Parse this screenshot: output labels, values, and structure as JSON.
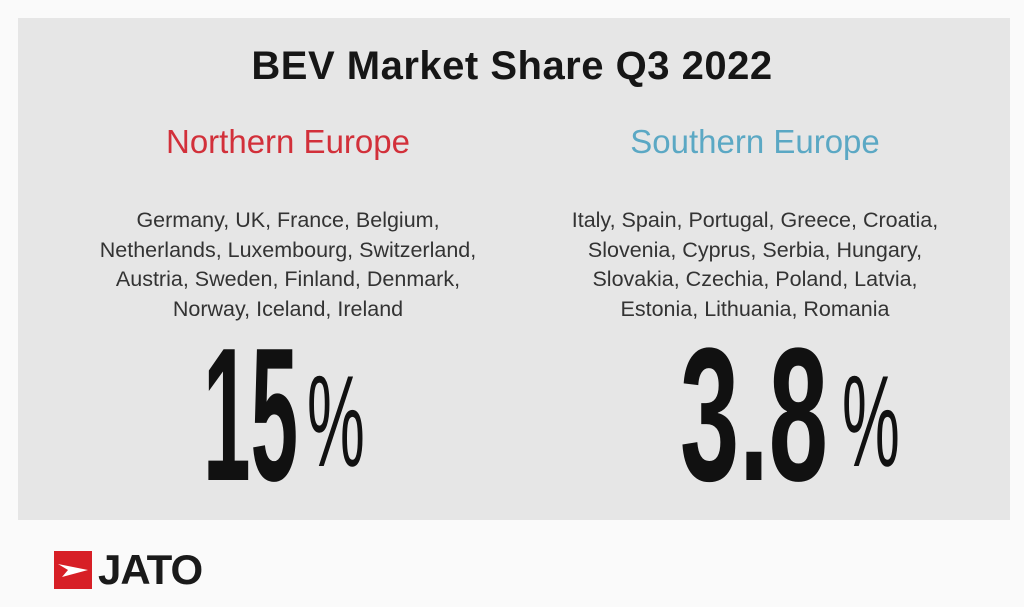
{
  "title": "BEV Market Share Q3 2022",
  "northern": {
    "region": "Northern Europe",
    "color": "#d2303a",
    "countries": [
      "Germany, UK, France, Belgium,",
      "Netherlands, Luxembourg, Switzerland,",
      "Austria, Sweden, Finland, Denmark,",
      "Norway, Iceland, Ireland"
    ],
    "share_value": "15",
    "share_unit": "%"
  },
  "southern": {
    "region": "Southern Europe",
    "color": "#5ba8c4",
    "countries": [
      "Italy, Spain, Portugal, Greece, Croatia,",
      "Slovenia, Cyprus, Serbia, Hungary,",
      "Slovakia, Czechia, Poland, Latvia,",
      "Estonia, Lithuania, Romania"
    ],
    "share_value": "3.8",
    "share_unit": "%"
  },
  "logo": {
    "text": "JATO",
    "color": "#d71f26"
  }
}
